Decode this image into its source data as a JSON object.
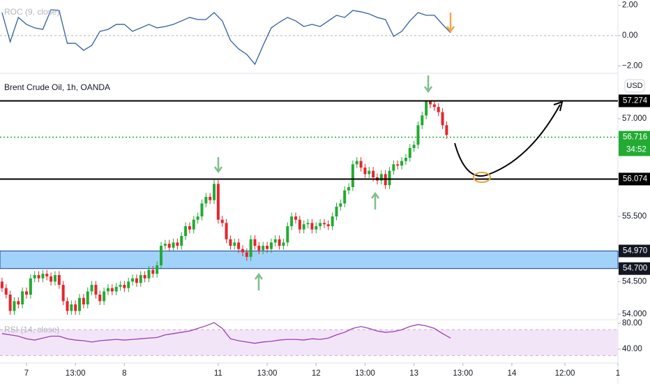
{
  "chart_data": [
    {
      "type": "candlestick",
      "title": "Brent Crude Oil, 1h, OANDA",
      "currency": "USD",
      "up_color": "#22ab33",
      "down_color": "#e3262d",
      "xlim": [
        -0.5,
        151
      ],
      "ylim": [
        53.893,
        57.643
      ],
      "xticks": [
        {
          "value": 6,
          "label": "7"
        },
        {
          "value": 18,
          "label": "13:00"
        },
        {
          "value": 30,
          "label": "8"
        },
        {
          "value": 53,
          "label": "11"
        },
        {
          "value": 65,
          "label": "13:00"
        },
        {
          "value": 77,
          "label": "12"
        },
        {
          "value": 89,
          "label": "13:00"
        },
        {
          "value": 101,
          "label": "13"
        },
        {
          "value": 113,
          "label": "13:00"
        },
        {
          "value": 125,
          "label": "14"
        },
        {
          "value": 138,
          "label": "12:00"
        },
        {
          "value": 151,
          "label": "1"
        }
      ],
      "yticks": [
        {
          "value": 57,
          "label": "57.000"
        },
        {
          "value": 55.5,
          "label": "55.500"
        },
        {
          "value": 54.5,
          "label": "54.500"
        },
        {
          "value": 54,
          "label": "54.000"
        }
      ],
      "open": [
        54.5,
        54.4,
        54.3,
        54.05,
        54.2,
        54.15,
        54.35,
        54.3,
        54.55,
        54.6,
        54.55,
        54.62,
        54.58,
        54.5,
        54.6,
        54.45,
        54.2,
        54.05,
        54.15,
        54.05,
        54.25,
        54.15,
        54.35,
        54.45,
        54.3,
        54.2,
        54.35,
        54.4,
        54.35,
        54.42,
        54.45,
        54.4,
        54.5,
        54.55,
        54.48,
        54.6,
        54.55,
        54.68,
        54.62,
        54.75,
        55.05,
        55.08,
        55.02,
        55.1,
        55.05,
        55.2,
        55.35,
        55.3,
        55.45,
        55.5,
        55.7,
        55.8,
        55.75,
        56.0,
        55.45,
        55.4,
        55.15,
        55.05,
        55.1,
        55.0,
        54.95,
        54.88,
        55.15,
        55.05,
        54.98,
        55.05,
        55.0,
        55.1,
        55.15,
        55.05,
        55.1,
        55.35,
        55.5,
        55.45,
        55.3,
        55.38,
        55.4,
        55.3,
        55.35,
        55.4,
        55.38,
        55.35,
        55.5,
        55.65,
        55.7,
        55.9,
        55.95,
        56.3,
        56.35,
        56.25,
        56.15,
        56.2,
        56.1,
        56.05,
        56.15,
        55.98,
        56.2,
        56.3,
        56.28,
        56.35,
        56.4,
        56.55,
        56.6,
        56.9,
        57.05,
        57.27,
        57.22,
        57.18,
        57.1,
        56.9
      ],
      "high": [
        54.56,
        54.46,
        54.36,
        54.26,
        54.26,
        54.41,
        54.41,
        54.61,
        54.66,
        54.66,
        54.68,
        54.68,
        54.64,
        54.66,
        54.66,
        54.51,
        54.26,
        54.21,
        54.21,
        54.31,
        54.31,
        54.41,
        54.51,
        54.51,
        54.36,
        54.41,
        54.46,
        54.46,
        54.48,
        54.51,
        54.51,
        54.56,
        54.61,
        54.61,
        54.66,
        54.66,
        54.74,
        54.74,
        54.81,
        55.11,
        55.14,
        55.14,
        55.16,
        55.16,
        55.26,
        55.41,
        55.41,
        55.51,
        55.56,
        55.76,
        55.86,
        55.86,
        56.06,
        56.06,
        55.51,
        55.46,
        55.21,
        55.16,
        55.16,
        55.06,
        55.01,
        55.21,
        55.21,
        55.11,
        55.11,
        55.11,
        55.16,
        55.21,
        55.21,
        55.16,
        55.41,
        55.56,
        55.56,
        55.51,
        55.44,
        55.46,
        55.46,
        55.41,
        55.46,
        55.46,
        55.44,
        55.56,
        55.71,
        55.76,
        55.96,
        56.01,
        56.36,
        56.41,
        56.41,
        56.31,
        56.26,
        56.26,
        56.16,
        56.21,
        56.21,
        56.26,
        56.36,
        56.36,
        56.41,
        56.46,
        56.61,
        56.66,
        56.96,
        57.11,
        57.28,
        57.28,
        57.28,
        57.24,
        57.16,
        56.96
      ],
      "low": [
        54.34,
        54.24,
        53.99,
        53.99,
        54.09,
        54.09,
        54.24,
        54.24,
        54.49,
        54.49,
        54.49,
        54.52,
        54.44,
        54.44,
        54.39,
        54.14,
        53.99,
        53.99,
        53.99,
        53.99,
        54.09,
        54.09,
        54.29,
        54.24,
        54.14,
        54.14,
        54.29,
        54.29,
        54.29,
        54.36,
        54.34,
        54.34,
        54.44,
        54.42,
        54.42,
        54.49,
        54.49,
        54.56,
        54.56,
        54.69,
        54.99,
        54.96,
        54.96,
        54.99,
        54.99,
        55.14,
        55.24,
        55.24,
        55.39,
        55.44,
        55.64,
        55.69,
        55.69,
        55.39,
        55.34,
        55.09,
        54.99,
        54.99,
        54.94,
        54.89,
        54.82,
        54.82,
        54.99,
        54.92,
        54.92,
        54.94,
        54.94,
        55.04,
        54.99,
        54.99,
        55.04,
        55.29,
        55.39,
        55.24,
        55.24,
        55.32,
        55.24,
        55.24,
        55.29,
        55.32,
        55.29,
        55.29,
        55.44,
        55.59,
        55.64,
        55.84,
        55.89,
        56.24,
        56.19,
        56.09,
        56.09,
        56.04,
        55.99,
        55.99,
        55.92,
        55.92,
        56.14,
        56.22,
        56.22,
        56.29,
        56.34,
        56.49,
        56.54,
        56.84,
        56.99,
        57.16,
        57.12,
        57.04,
        56.84,
        56.69
      ],
      "close": [
        54.4,
        54.3,
        54.05,
        54.2,
        54.15,
        54.35,
        54.3,
        54.55,
        54.6,
        54.55,
        54.62,
        54.58,
        54.5,
        54.6,
        54.45,
        54.2,
        54.05,
        54.15,
        54.05,
        54.25,
        54.15,
        54.35,
        54.45,
        54.3,
        54.2,
        54.35,
        54.4,
        54.35,
        54.42,
        54.45,
        54.4,
        54.5,
        54.55,
        54.48,
        54.6,
        54.55,
        54.68,
        54.62,
        54.75,
        55.05,
        55.08,
        55.02,
        55.1,
        55.05,
        55.2,
        55.35,
        55.3,
        55.45,
        55.5,
        55.7,
        55.8,
        55.75,
        56.0,
        55.45,
        55.4,
        55.15,
        55.05,
        55.1,
        55.0,
        54.95,
        54.88,
        55.15,
        55.05,
        54.98,
        55.05,
        55.0,
        55.1,
        55.15,
        55.05,
        55.1,
        55.35,
        55.5,
        55.45,
        55.3,
        55.38,
        55.4,
        55.3,
        55.35,
        55.4,
        55.38,
        55.35,
        55.5,
        55.65,
        55.7,
        55.9,
        55.95,
        56.3,
        56.35,
        56.25,
        56.15,
        56.2,
        56.1,
        56.05,
        56.15,
        55.98,
        56.2,
        56.3,
        56.28,
        56.35,
        56.4,
        56.55,
        56.6,
        56.9,
        57.05,
        57.27,
        57.22,
        57.18,
        57.1,
        56.9,
        56.75
      ],
      "levels": [
        {
          "value": 57.274,
          "label": "57.274",
          "color": "#000000"
        },
        {
          "value": 56.074,
          "label": "56.074",
          "color": "#000000"
        }
      ],
      "band": {
        "from": {
          "value": 54.7,
          "label": "54.700"
        },
        "to": {
          "value": 54.97,
          "label": "54.970"
        },
        "color": "#90caf9"
      },
      "last_price": {
        "value": 56.716,
        "label": "56.716",
        "countdown": "34:52",
        "color": "#22ab33"
      }
    },
    {
      "type": "line",
      "title": "ROC (9, close)",
      "color": "#2f5f9e",
      "xlim": [
        -0.5,
        151
      ],
      "ylim": [
        -2.49,
        2.35
      ],
      "yticks": [
        {
          "value": 2,
          "label": "2.00"
        },
        {
          "value": 0,
          "label": "0.00"
        },
        {
          "value": -2,
          "label": "−2.00"
        }
      ],
      "zero_line": 0,
      "x": [
        0,
        2,
        4,
        6,
        8,
        10,
        12,
        14,
        16,
        18,
        20,
        22,
        24,
        26,
        28,
        30,
        32,
        34,
        36,
        38,
        40,
        42,
        44,
        46,
        48,
        50,
        52,
        54,
        56,
        58,
        60,
        62,
        64,
        66,
        68,
        70,
        72,
        74,
        76,
        78,
        80,
        82,
        84,
        86,
        88,
        90,
        92,
        94,
        96,
        98,
        100,
        102,
        104,
        106,
        108,
        110
      ],
      "values": [
        1.52,
        -0.41,
        1.2,
        0.74,
        0.51,
        0.41,
        1.71,
        1.66,
        -0.51,
        -0.51,
        -0.97,
        -0.65,
        0.28,
        0.41,
        0.74,
        0.74,
        0.28,
        0.51,
        0.74,
        0.51,
        0.6,
        0.74,
        0.97,
        1.2,
        1.06,
        1.06,
        1.52,
        0.97,
        -0.32,
        -0.88,
        -1.24,
        -1.89,
        -0.65,
        0.51,
        0.88,
        1.2,
        0.97,
        0.6,
        0.74,
        0.6,
        0.97,
        1.34,
        1.2,
        1.66,
        1.57,
        1.43,
        1.2,
        1.06,
        -0.05,
        0.28,
        0.97,
        1.52,
        1.34,
        1.34,
        0.74,
        0.18
      ]
    },
    {
      "type": "line",
      "title": "RSI (14, close)",
      "color": "#9c3fb5",
      "xlim": [
        -0.5,
        151
      ],
      "ylim": [
        18.4,
        85.4
      ],
      "yticks": [
        {
          "value": 80,
          "label": "80.00"
        },
        {
          "value": 40,
          "label": "40.00"
        }
      ],
      "band": {
        "from": 30,
        "to": 70,
        "color": "#f3e5f8"
      },
      "x": [
        0,
        2,
        4,
        6,
        8,
        10,
        12,
        14,
        16,
        18,
        20,
        22,
        24,
        26,
        28,
        30,
        32,
        34,
        36,
        38,
        40,
        42,
        44,
        46,
        48,
        50,
        52,
        54,
        56,
        58,
        60,
        62,
        64,
        66,
        68,
        70,
        72,
        74,
        76,
        78,
        80,
        82,
        84,
        86,
        88,
        90,
        92,
        94,
        96,
        98,
        100,
        102,
        104,
        106,
        108,
        110
      ],
      "values": [
        64,
        62,
        60,
        56,
        54,
        57,
        60,
        60,
        56,
        54,
        53,
        51,
        53,
        54,
        55,
        54,
        55,
        56,
        57,
        58,
        62,
        64,
        66,
        68,
        72,
        76,
        81,
        72,
        56,
        53,
        51,
        49,
        51,
        52,
        54,
        55,
        55,
        54,
        56,
        55,
        57,
        62,
        66,
        72,
        75,
        72,
        68,
        66,
        67,
        70,
        75,
        78,
        76,
        72,
        64,
        57
      ]
    }
  ]
}
